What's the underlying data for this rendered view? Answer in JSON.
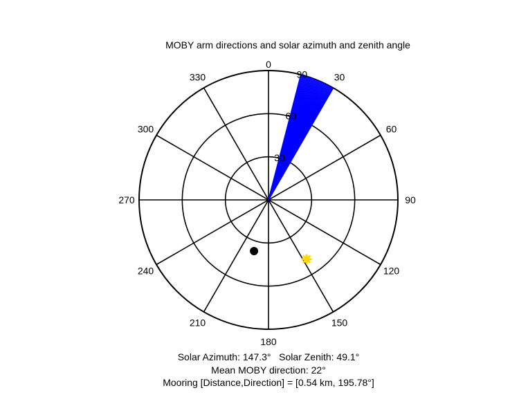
{
  "chart_data": {
    "type": "polar",
    "title": "MOBY arm directions and solar azimuth and zenith angle",
    "angle_ticks": [
      "0",
      "30",
      "60",
      "90",
      "120",
      "150",
      "180",
      "210",
      "240",
      "270",
      "300",
      "330"
    ],
    "angle_tick_values": [
      0,
      30,
      60,
      90,
      120,
      150,
      180,
      210,
      240,
      270,
      300,
      330
    ],
    "radial_ticks": [
      "30",
      "60",
      "90"
    ],
    "radial_tick_values": [
      30,
      60,
      90
    ],
    "rlim": [
      0,
      90
    ],
    "theta_zero": "top",
    "theta_direction": "clockwise",
    "grid": true,
    "arm_directions": {
      "color": "#0000ff",
      "directions_deg": [
        14.5,
        15,
        15.5,
        16,
        16.5,
        17,
        17.5,
        18,
        18.5,
        19,
        19.5,
        20,
        20.5,
        21,
        21.5,
        22,
        22.5,
        23,
        23.5,
        24,
        24.5,
        25,
        25.5,
        26,
        26.5,
        27,
        27.5,
        28,
        28.5,
        29,
        29.5,
        30
      ],
      "length": 90
    },
    "sun": {
      "azimuth": 147.3,
      "zenith": 49.1,
      "color": "#ffd700"
    },
    "mooring_marker": {
      "direction": 195.78,
      "radius": 37,
      "color": "#000000"
    }
  },
  "captions": {
    "line1": "Solar Azimuth: 147.3°   Solar Zenith: 49.1°",
    "line2": "Mean MOBY direction: 22°",
    "line3": "Mooring [Distance,Direction] = [0.54 km, 195.78°]"
  }
}
